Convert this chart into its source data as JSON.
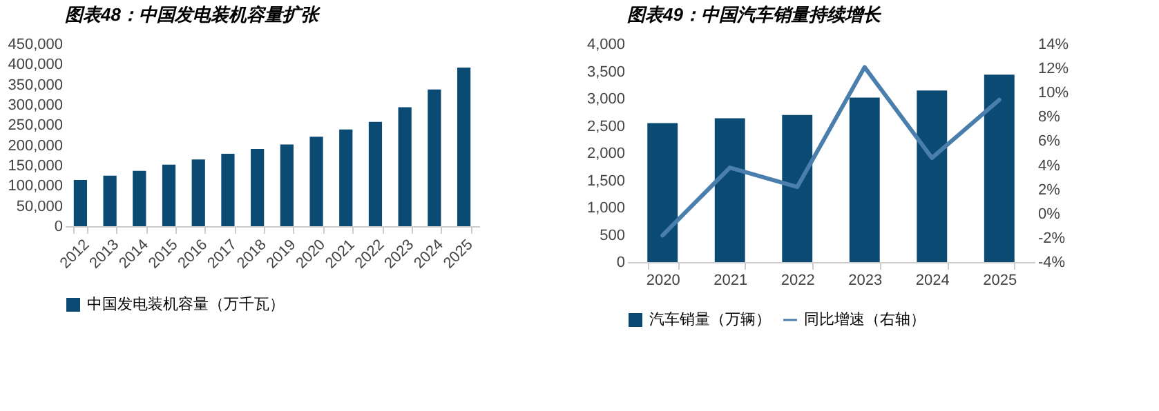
{
  "chart_data": [
    {
      "type": "bar",
      "title": "图表48：中国发电装机容量扩张",
      "categories": [
        "2012",
        "2013",
        "2014",
        "2015",
        "2016",
        "2017",
        "2018",
        "2019",
        "2020",
        "2021",
        "2022",
        "2023",
        "2024",
        "2025"
      ],
      "series": [
        {
          "name": "中国发电装机容量（万千瓦）",
          "color": "#0b4a72",
          "values": [
            114000,
            125000,
            137000,
            152000,
            165000,
            179000,
            191000,
            202000,
            221000,
            239000,
            258000,
            294000,
            338000,
            392000
          ]
        }
      ],
      "ylim": [
        0,
        450000
      ],
      "yticks": [
        {
          "value": 0,
          "label": "0"
        },
        {
          "value": 50000,
          "label": "50,000"
        },
        {
          "value": 100000,
          "label": "100,000"
        },
        {
          "value": 150000,
          "label": "150,000"
        },
        {
          "value": 200000,
          "label": "200,000"
        },
        {
          "value": 250000,
          "label": "250,000"
        },
        {
          "value": 300000,
          "label": "300,000"
        },
        {
          "value": 350000,
          "label": "350,000"
        },
        {
          "value": 400000,
          "label": "400,000"
        },
        {
          "value": 450000,
          "label": "450,000"
        }
      ],
      "legend": "bottom"
    },
    {
      "type": "bar",
      "title": "图表49：中国汽车销量持续增长",
      "categories": [
        "2020",
        "2021",
        "2022",
        "2023",
        "2024",
        "2025"
      ],
      "series": [
        {
          "name": "汽车销量（万辆）",
          "color": "#0b4a72",
          "values": [
            2550,
            2640,
            2700,
            3020,
            3150,
            3440
          ]
        },
        {
          "name": "同比增速（右轴）",
          "type": "line",
          "axis": "y2",
          "color": "#4a7fad",
          "values": [
            -1.8,
            3.8,
            2.2,
            12.1,
            4.6,
            9.4
          ]
        }
      ],
      "ylim": [
        0,
        4000
      ],
      "yticks": [
        {
          "value": 0,
          "label": "0"
        },
        {
          "value": 500,
          "label": "500"
        },
        {
          "value": 1000,
          "label": "1,000"
        },
        {
          "value": 1500,
          "label": "1,500"
        },
        {
          "value": 2000,
          "label": "2,000"
        },
        {
          "value": 2500,
          "label": "2,500"
        },
        {
          "value": 3000,
          "label": "3,000"
        },
        {
          "value": 3500,
          "label": "3,500"
        },
        {
          "value": 4000,
          "label": "4,000"
        }
      ],
      "y2lim": [
        -4,
        14
      ],
      "y2ticks": [
        {
          "value": -4,
          "label": "-4%"
        },
        {
          "value": -2,
          "label": "-2%"
        },
        {
          "value": 0,
          "label": "0%"
        },
        {
          "value": 2,
          "label": "2%"
        },
        {
          "value": 4,
          "label": "4%"
        },
        {
          "value": 6,
          "label": "6%"
        },
        {
          "value": 8,
          "label": "8%"
        },
        {
          "value": 10,
          "label": "10%"
        },
        {
          "value": 12,
          "label": "12%"
        },
        {
          "value": 14,
          "label": "14%"
        }
      ],
      "legend": "bottom"
    }
  ]
}
